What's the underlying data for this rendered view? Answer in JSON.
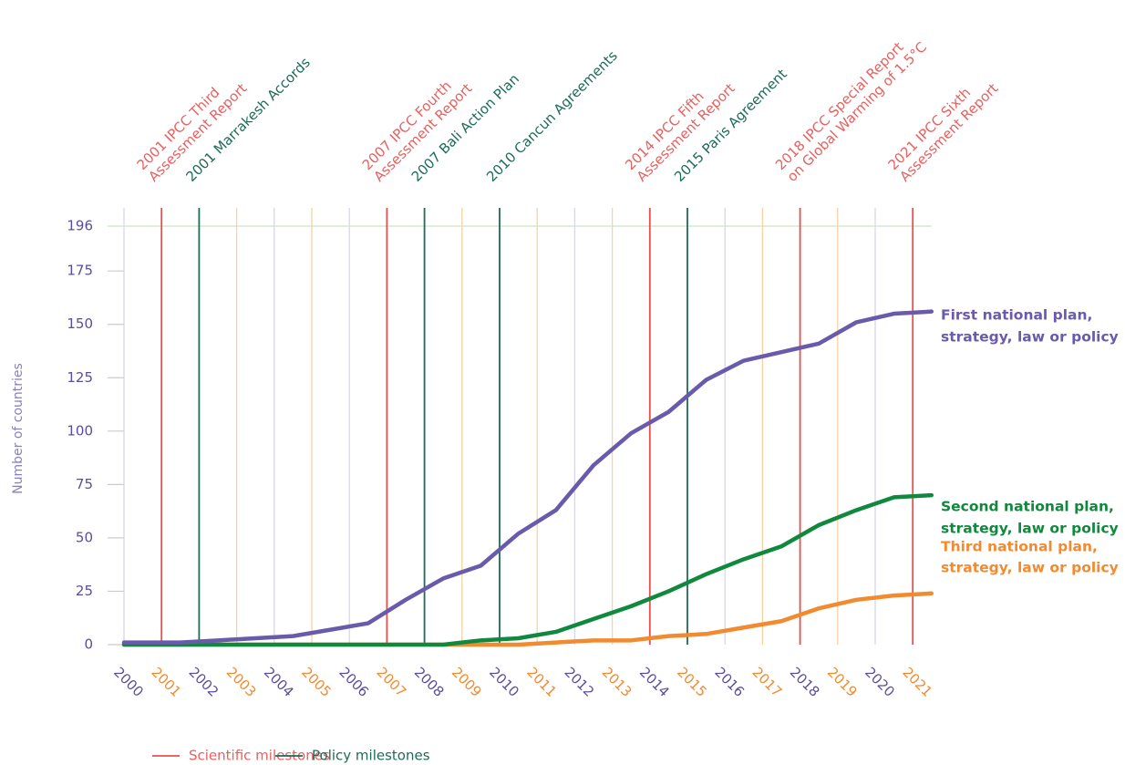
{
  "chart_data": {
    "type": "line",
    "y_label": "Number of countries",
    "x": [
      2000,
      2001.5,
      2002.5,
      2003.5,
      2004.5,
      2005.5,
      2006.5,
      2007.5,
      2008.5,
      2009.5,
      2010.5,
      2011.5,
      2012.5,
      2013.5,
      2014.5,
      2015.5,
      2016.5,
      2017.5,
      2018.5,
      2019.5,
      2020.5,
      2021.5
    ],
    "xlim": [
      2000,
      2021.5
    ],
    "xticks": [
      2000,
      2001,
      2002,
      2003,
      2004,
      2005,
      2006,
      2007,
      2008,
      2009,
      2010,
      2011,
      2012,
      2013,
      2014,
      2015,
      2016,
      2017,
      2018,
      2019,
      2020,
      2021
    ],
    "ylim": [
      0,
      196
    ],
    "yticks": [
      0,
      25,
      50,
      75,
      100,
      125,
      150,
      175,
      196
    ],
    "grid": true,
    "series": [
      {
        "name": [
          "Third national plan,",
          "strategy, law or policy"
        ],
        "color": "#f28a30",
        "values": [
          0,
          0,
          0,
          0,
          0,
          0,
          0,
          0,
          0,
          0,
          0,
          1,
          2,
          2,
          4,
          5,
          8,
          11,
          17,
          21,
          23,
          24
        ]
      },
      {
        "name": [
          "Second national plan,",
          "strategy, law or policy"
        ],
        "color": "#10893e",
        "values": [
          0,
          0,
          0,
          0,
          0,
          0,
          0,
          0,
          0,
          2,
          3,
          6,
          12,
          18,
          25,
          33,
          40,
          46,
          56,
          63,
          69,
          70
        ]
      },
      {
        "name": [
          "First national plan,",
          "strategy, law or policy"
        ],
        "color": "#6a5aab",
        "values": [
          1,
          1,
          2,
          3,
          4,
          7,
          10,
          21,
          31,
          37,
          52,
          63,
          84,
          99,
          109,
          124,
          133,
          137,
          141,
          151,
          155,
          156
        ]
      }
    ],
    "milestones": [
      {
        "x": 2001,
        "kind": 0,
        "label": [
          "2001 IPCC Third",
          "Assessment Report"
        ]
      },
      {
        "x": 2002,
        "kind": 1,
        "label": [
          "2001 Marrakesh Accords"
        ]
      },
      {
        "x": 2007,
        "kind": 0,
        "label": [
          "2007 IPCC Fourth",
          "Assessment Report"
        ]
      },
      {
        "x": 2008,
        "kind": 1,
        "label": [
          "2007 Bali Action Plan"
        ]
      },
      {
        "x": 2010,
        "kind": 1,
        "label": [
          "2010 Cancun Agreements"
        ]
      },
      {
        "x": 2014,
        "kind": 0,
        "label": [
          "2014 IPCC Fifth",
          "Assessment Report"
        ]
      },
      {
        "x": 2015,
        "kind": 1,
        "label": [
          "2015 Paris Agreement"
        ]
      },
      {
        "x": 2018,
        "kind": 0,
        "label": [
          "2018 IPCC Special Report",
          "on Global Warming of 1.5°C"
        ]
      },
      {
        "x": 2021,
        "kind": 0,
        "label": [
          "2021 IPCC Sixth",
          "Assessment Report"
        ]
      }
    ],
    "legend": [
      {
        "name": "Scientific milestones",
        "color": "#e8504f",
        "text_color": "#e8605f"
      },
      {
        "name": "Policy milestones",
        "color": "#1d6b58",
        "text_color": "#1d6b58"
      }
    ]
  }
}
